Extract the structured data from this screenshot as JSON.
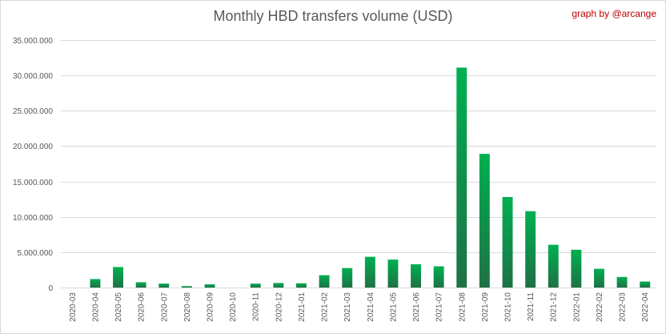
{
  "chart_data": {
    "type": "bar",
    "title": "Monthly HBD transfers volume (USD)",
    "credit": "graph by @arcange",
    "xlabel": "",
    "ylabel": "",
    "ylim": [
      0,
      35000000
    ],
    "yticks": [
      0,
      5000000,
      10000000,
      15000000,
      20000000,
      25000000,
      30000000,
      35000000
    ],
    "ytick_labels": [
      "0",
      "5.000.000",
      "10.000.000",
      "15.000.000",
      "20.000.000",
      "25.000.000",
      "30.000.000",
      "35.000.000"
    ],
    "grid": true,
    "legend": "none",
    "bar_color_top": "#00b050",
    "bar_color_bottom": "#1e7145",
    "categories": [
      "2020-03",
      "2020-04",
      "2020-05",
      "2020-06",
      "2020-07",
      "2020-08",
      "2020-09",
      "2020-10",
      "2020-11",
      "2020-12",
      "2021-01",
      "2021-02",
      "2021-03",
      "2021-04",
      "2021-05",
      "2021-06",
      "2021-07",
      "2021-08",
      "2021-09",
      "2021-10",
      "2021-11",
      "2021-12",
      "2022-01",
      "2022-02",
      "2022-03",
      "2022-04"
    ],
    "values": [
      0,
      1200000,
      2900000,
      750000,
      550000,
      200000,
      450000,
      0,
      550000,
      650000,
      600000,
      1750000,
      2750000,
      4350000,
      3950000,
      3300000,
      3000000,
      31100000,
      18900000,
      12800000,
      10800000,
      6050000,
      5350000,
      2650000,
      1500000,
      850000
    ]
  }
}
